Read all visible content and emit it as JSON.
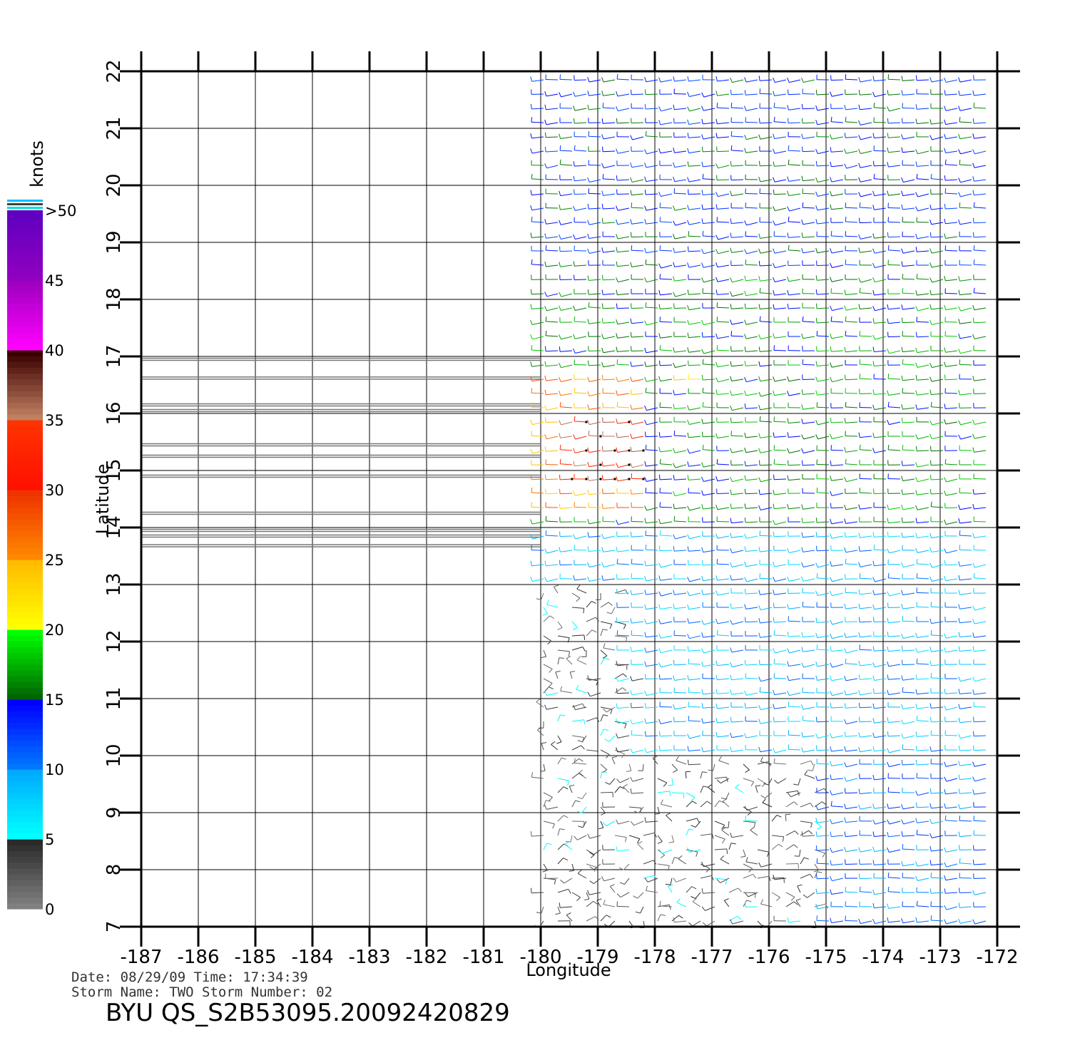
{
  "chart_data": {
    "type": "scatter",
    "subtype": "wind-barb field (scatterometer)",
    "title": "",
    "xlabel": "Longitude",
    "ylabel": "Latitude",
    "xlim": [
      -187,
      -172
    ],
    "ylim": [
      7,
      22
    ],
    "x_ticks": [
      "-187",
      "-186",
      "-185",
      "-184",
      "-183",
      "-182",
      "-181",
      "-180",
      "-179",
      "-178",
      "-177",
      "-176",
      "-175",
      "-174",
      "-173",
      "-172"
    ],
    "y_ticks": [
      "7",
      "8",
      "9",
      "10",
      "11",
      "12",
      "13",
      "14",
      "15",
      "16",
      "17",
      "18",
      "19",
      "20",
      "21",
      "22"
    ],
    "grid": true,
    "swath_lon_range": [
      -180,
      -172
    ],
    "rain_flag_lats": [
      16.95,
      16.62,
      16.15,
      16.05,
      15.45,
      15.25,
      14.9,
      14.25,
      13.95,
      13.85,
      13.68
    ],
    "colorbar": {
      "unit": "knots",
      "labels": [
        "0",
        "5",
        "10",
        "15",
        "20",
        "25",
        "30",
        "35",
        "40",
        "45",
        ">50"
      ],
      "bins": [
        {
          "min": 0,
          "max": 5,
          "from": "#808080",
          "to": "#2a2a2a"
        },
        {
          "min": 5,
          "max": 10,
          "from": "#00ffff",
          "to": "#00aaff"
        },
        {
          "min": 10,
          "max": 15,
          "from": "#0077ff",
          "to": "#0000ff"
        },
        {
          "min": 15,
          "max": 20,
          "from": "#006600",
          "to": "#00ff00"
        },
        {
          "min": 20,
          "max": 25,
          "from": "#ffff00",
          "to": "#ffbb00"
        },
        {
          "min": 25,
          "max": 30,
          "from": "#ff8800",
          "to": "#ee3300"
        },
        {
          "min": 30,
          "max": 35,
          "from": "#ff1100",
          "to": "#ff3300"
        },
        {
          "min": 35,
          "max": 40,
          "from": "#c08060",
          "to": "#3a0000"
        },
        {
          "min": 40,
          "max": 45,
          "from": "#ff00ff",
          "to": "#a000c0"
        },
        {
          "min": 45,
          "max": 50,
          "from": "#9000c0",
          "to": "#6000c0"
        }
      ]
    },
    "wind_regions": [
      {
        "lon": [
          -180,
          -172
        ],
        "lat": [
          18.5,
          22
        ],
        "speed_kt": 14
      },
      {
        "lon": [
          -180,
          -172
        ],
        "lat": [
          14,
          18.5
        ],
        "speed_kt": 16
      },
      {
        "lon": [
          -180,
          -178
        ],
        "lat": [
          14.3,
          16.8
        ],
        "speed_kt": 26
      },
      {
        "lon": [
          -179.6,
          -178.2
        ],
        "lat": [
          14.7,
          16
        ],
        "speed_kt": 34
      },
      {
        "lon": [
          -177.5,
          -177
        ],
        "lat": [
          16.4,
          16.7
        ],
        "speed_kt": 22
      },
      {
        "lon": [
          -180,
          -172
        ],
        "lat": [
          12,
          14
        ],
        "speed_kt": 9
      },
      {
        "lon": [
          -180,
          -178.5
        ],
        "lat": [
          10,
          13
        ],
        "speed_kt": 3
      },
      {
        "lon": [
          -178,
          -172
        ],
        "lat": [
          10,
          12
        ],
        "speed_kt": 9
      },
      {
        "lon": [
          -180,
          -175
        ],
        "lat": [
          7,
          10
        ],
        "speed_kt": 3
      },
      {
        "lon": [
          -175,
          -172
        ],
        "lat": [
          7,
          10
        ],
        "speed_kt": 11
      }
    ]
  },
  "footer": {
    "date_line": "Date:  08/29/09    Time:  17:34:39",
    "storm_line": "Storm  Name:  TWO    Storm  Number:  02",
    "file_name": "BYU  QS_S2B53095.20092420829"
  },
  "colors": {
    "grid": "#000000",
    "rain_flag": "#777777"
  }
}
